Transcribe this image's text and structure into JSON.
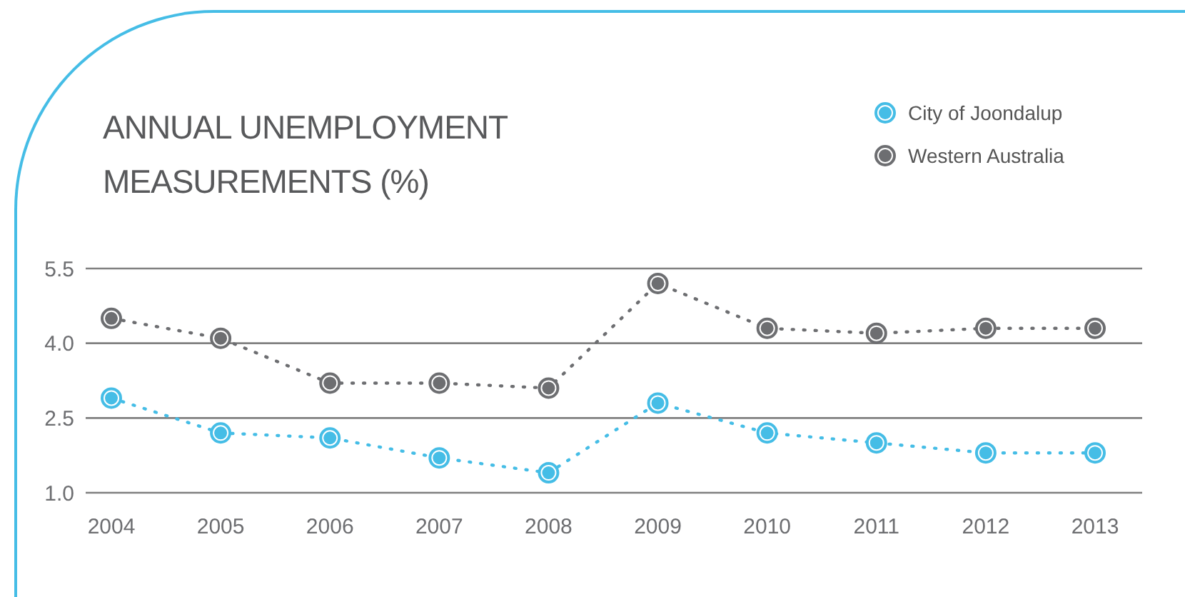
{
  "chart_data": {
    "type": "line",
    "title": "ANNUAL UNEMPLOYMENT MEASUREMENTS (%)",
    "categories": [
      "2004",
      "2005",
      "2006",
      "2007",
      "2008",
      "2009",
      "2010",
      "2011",
      "2012",
      "2013"
    ],
    "series": [
      {
        "name": "City of Joondalup",
        "color": "#45bde6",
        "values": [
          2.9,
          2.2,
          2.1,
          1.7,
          1.4,
          2.8,
          2.2,
          2.0,
          1.8,
          1.8
        ]
      },
      {
        "name": "Western Australia",
        "color": "#6d6e71",
        "values": [
          4.5,
          4.1,
          3.2,
          3.2,
          3.1,
          5.2,
          4.3,
          4.2,
          4.3,
          4.3
        ]
      }
    ],
    "ylim": [
      1.0,
      5.5
    ],
    "yticks": [
      {
        "value": 1.0,
        "label": "1.0"
      },
      {
        "value": 2.5,
        "label": "2.5"
      },
      {
        "value": 4.0,
        "label": "4.0"
      },
      {
        "value": 5.5,
        "label": "5.5"
      }
    ],
    "grid": "y",
    "legend": "top right",
    "marker": "circle",
    "line_style": "dotted"
  }
}
